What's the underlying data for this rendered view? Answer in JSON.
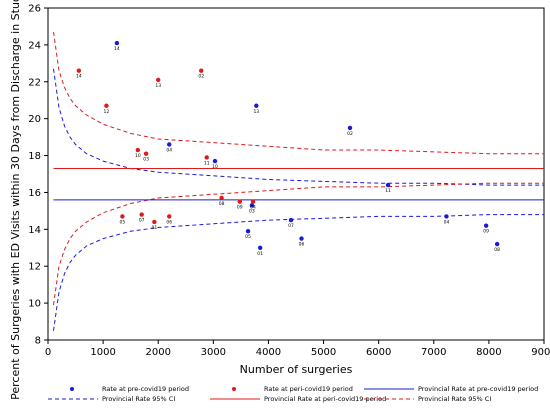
{
  "chart_data": {
    "type": "scatter",
    "xlabel": "Number of surgeries",
    "ylabel": "Percent of Surgeries with ED Visits within 30 Days from Discharge in Study Cohort",
    "xlim": [
      0,
      9000
    ],
    "ylim": [
      8,
      26
    ],
    "xticks": [
      0,
      1000,
      2000,
      3000,
      4000,
      5000,
      6000,
      7000,
      8000,
      9000
    ],
    "yticks": [
      8,
      10,
      12,
      14,
      16,
      18,
      20,
      22,
      24,
      26
    ],
    "grid": false,
    "legend_position": "bottom",
    "colors": {
      "pre": "#1a1adb",
      "peri": "#e0191b"
    },
    "series": [
      {
        "name": "Rate at pre-covid19 period",
        "kind": "points",
        "color": "#1a1adb",
        "points": [
          {
            "x": 1250,
            "y": 24.1,
            "label": "14"
          },
          {
            "x": 3780,
            "y": 20.7,
            "label": "13"
          },
          {
            "x": 5480,
            "y": 19.5,
            "label": "02"
          },
          {
            "x": 2200,
            "y": 18.6,
            "label": "04"
          },
          {
            "x": 3030,
            "y": 17.7,
            "label": "10"
          },
          {
            "x": 6170,
            "y": 16.4,
            "label": "11"
          },
          {
            "x": 3700,
            "y": 15.3,
            "label": "03"
          },
          {
            "x": 4410,
            "y": 14.5,
            "label": "07"
          },
          {
            "x": 7230,
            "y": 14.7,
            "label": "04"
          },
          {
            "x": 7950,
            "y": 14.2,
            "label": "09"
          },
          {
            "x": 3630,
            "y": 13.9,
            "label": "05"
          },
          {
            "x": 4600,
            "y": 13.5,
            "label": "06"
          },
          {
            "x": 3850,
            "y": 13.0,
            "label": "01"
          },
          {
            "x": 8150,
            "y": 13.2,
            "label": "08"
          }
        ]
      },
      {
        "name": "Rate at peri-covid19 period",
        "kind": "points",
        "color": "#e0191b",
        "points": [
          {
            "x": 560,
            "y": 22.6,
            "label": "14"
          },
          {
            "x": 2780,
            "y": 22.6,
            "label": "02"
          },
          {
            "x": 2000,
            "y": 22.1,
            "label": "13"
          },
          {
            "x": 1060,
            "y": 20.7,
            "label": "12"
          },
          {
            "x": 1630,
            "y": 18.3,
            "label": "10"
          },
          {
            "x": 1780,
            "y": 18.1,
            "label": "03"
          },
          {
            "x": 2880,
            "y": 17.9,
            "label": "11"
          },
          {
            "x": 3150,
            "y": 15.7,
            "label": "08"
          },
          {
            "x": 3480,
            "y": 15.5,
            "label": "09"
          },
          {
            "x": 3720,
            "y": 15.5,
            "label": "04"
          },
          {
            "x": 1350,
            "y": 14.7,
            "label": "05"
          },
          {
            "x": 1700,
            "y": 14.8,
            "label": "07"
          },
          {
            "x": 2200,
            "y": 14.7,
            "label": "06"
          },
          {
            "x": 1930,
            "y": 14.4,
            "label": "01"
          }
        ]
      },
      {
        "name": "Provincial Rate at pre-covid19 period",
        "kind": "hline",
        "color": "#1a1adb",
        "value": 15.6
      },
      {
        "name": "Provincial Rate 95% CI",
        "kind": "ci",
        "color": "#1a1adb",
        "rate": 15.6,
        "x": [
          100,
          200,
          300,
          400,
          500,
          700,
          1000,
          1500,
          2000,
          3000,
          4000,
          5000,
          6000,
          7000,
          8000,
          9000
        ],
        "upper": [
          22.7,
          20.6,
          19.6,
          19.0,
          18.6,
          18.1,
          17.7,
          17.3,
          17.1,
          16.9,
          16.7,
          16.6,
          16.5,
          16.5,
          16.4,
          16.4
        ],
        "lower": [
          8.5,
          10.6,
          11.6,
          12.2,
          12.6,
          13.1,
          13.5,
          13.9,
          14.1,
          14.3,
          14.5,
          14.6,
          14.7,
          14.7,
          14.8,
          14.8
        ]
      },
      {
        "name": "Provincial Rate at peri-covid19 period",
        "kind": "hline",
        "color": "#e0191b",
        "value": 17.3
      },
      {
        "name": "Provincial Rate 95% CI",
        "kind": "ci",
        "color": "#e0191b",
        "rate": 17.3,
        "x": [
          100,
          200,
          300,
          400,
          500,
          700,
          1000,
          1500,
          2000,
          3000,
          4000,
          5000,
          6000,
          7000,
          8000,
          9000
        ],
        "upper": [
          24.7,
          22.6,
          21.7,
          21.1,
          20.7,
          20.2,
          19.7,
          19.2,
          18.9,
          18.7,
          18.5,
          18.3,
          18.3,
          18.2,
          18.1,
          18.1
        ],
        "lower": [
          9.9,
          12.0,
          12.9,
          13.5,
          13.9,
          14.4,
          14.9,
          15.4,
          15.7,
          15.9,
          16.1,
          16.3,
          16.3,
          16.4,
          16.5,
          16.5
        ]
      }
    ]
  }
}
